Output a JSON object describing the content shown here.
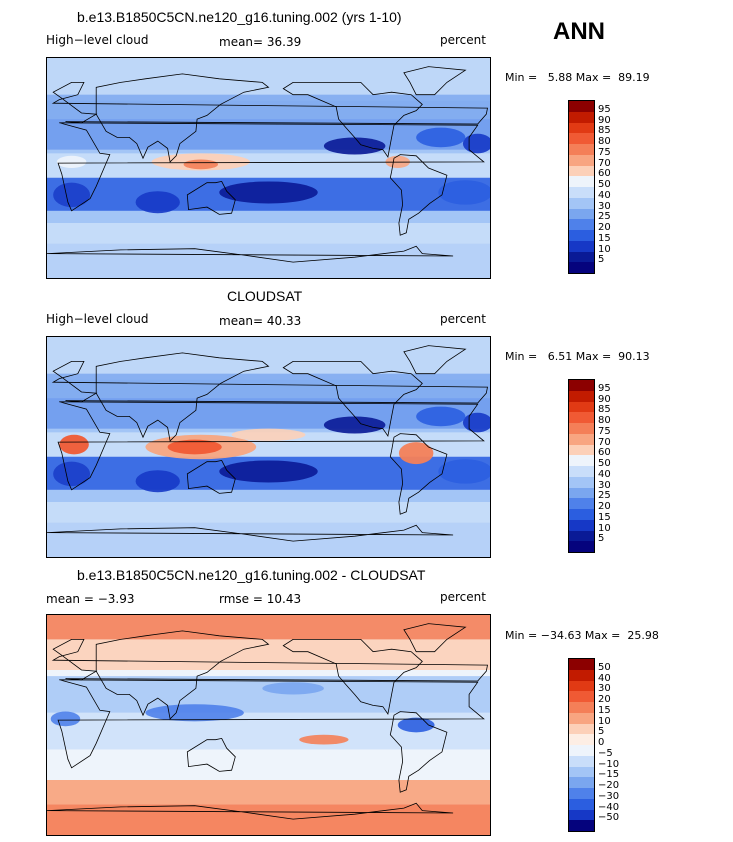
{
  "season": "ANN",
  "panels": [
    {
      "title": "b.e13.B1850C5CN.ne120_g16.tuning.002 (yrs 1-10)",
      "left_label": "High−level cloud",
      "center_label": "mean=  36.39",
      "right_label": "percent",
      "minmax": "Min =   5.88 Max =  89.19",
      "levels": [
        "95",
        "90",
        "85",
        "80",
        "75",
        "70",
        "60",
        "50",
        "40",
        "30",
        "25",
        "20",
        "15",
        "10",
        "5"
      ],
      "colors": [
        "#8c0000",
        "#c21b00",
        "#e13a14",
        "#f05a34",
        "#f47f58",
        "#f8a581",
        "#fcd0b8",
        "#eef4fb",
        "#c9defa",
        "#a3c5f6",
        "#7aa6ef",
        "#4f81ea",
        "#2b5ee0",
        "#1638c6",
        "#0a1a96",
        "#05037d"
      ]
    },
    {
      "title": "CLOUDSAT",
      "left_label": "High−level cloud",
      "center_label": "mean=  40.33",
      "right_label": "percent",
      "minmax": "Min =   6.51 Max =  90.13",
      "levels": [
        "95",
        "90",
        "85",
        "80",
        "75",
        "70",
        "60",
        "50",
        "40",
        "30",
        "25",
        "20",
        "15",
        "10",
        "5"
      ],
      "colors": [
        "#8c0000",
        "#c21b00",
        "#e13a14",
        "#f05a34",
        "#f47f58",
        "#f8a581",
        "#fcd0b8",
        "#eef4fb",
        "#c9defa",
        "#a3c5f6",
        "#7aa6ef",
        "#4f81ea",
        "#2b5ee0",
        "#1638c6",
        "#0a1a96",
        "#05037d"
      ]
    },
    {
      "title": "b.e13.B1850C5CN.ne120_g16.tuning.002 - CLOUDSAT",
      "left_label": "mean =  −3.93",
      "center_label": "rmse =  10.43",
      "right_label": "percent",
      "minmax": "Min = −34.63 Max =  25.98",
      "levels": [
        "50",
        "40",
        "30",
        "20",
        "15",
        "10",
        "5",
        "0",
        "−5",
        "−10",
        "−15",
        "−20",
        "−30",
        "−40",
        "−50"
      ],
      "colors": [
        "#8c0000",
        "#c21b00",
        "#e13a14",
        "#f05a34",
        "#f47f58",
        "#f8a581",
        "#fcd0b8",
        "#fdeee4",
        "#eef4fb",
        "#c9defa",
        "#a3c5f6",
        "#7aa6ef",
        "#4f81ea",
        "#2b5ee0",
        "#1638c6",
        "#05037d"
      ]
    }
  ]
}
